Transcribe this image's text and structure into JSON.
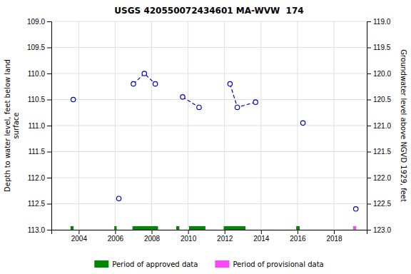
{
  "chart_data": {
    "type": "scatter",
    "title": "USGS 420550072434601 MA-WVW  174",
    "ylabel": "Depth to water level, feet below land\nsurface",
    "y2label": "Groundwater level above NGVD 1929, feet",
    "x": [
      2003.7,
      2006.2,
      2007.0,
      2007.6,
      2008.2,
      2009.7,
      2010.6,
      2012.3,
      2012.7,
      2013.7,
      2016.3,
      2019.2
    ],
    "series": [
      {
        "values": [
          110.5,
          112.4,
          110.2,
          110.0,
          110.2,
          110.45,
          110.65,
          110.2,
          110.65,
          110.55,
          110.95,
          112.6
        ],
        "color": "#0000cc",
        "marker": "open-circle",
        "line_style": "dashed",
        "line_groups": [
          [
            2,
            3,
            4
          ],
          [
            5,
            6
          ],
          [
            7,
            8,
            9
          ]
        ]
      }
    ],
    "periods": [
      {
        "name": "Period of approved data",
        "color": "#008800",
        "ranges": [
          [
            2003.55,
            2003.72
          ],
          [
            2005.95,
            2006.08
          ],
          [
            2006.95,
            2008.35
          ],
          [
            2009.35,
            2009.52
          ],
          [
            2010.05,
            2010.95
          ],
          [
            2011.95,
            2013.15
          ],
          [
            2015.93,
            2016.12
          ]
        ]
      },
      {
        "name": "Period of provisional data",
        "color": "#ff44ff",
        "ranges": [
          [
            2019.05,
            2019.22
          ]
        ]
      }
    ],
    "xlim": [
      2002.5,
      2019.8
    ],
    "xticks": [
      2004,
      2006,
      2008,
      2010,
      2012,
      2014,
      2016,
      2018
    ],
    "ylim": [
      113.0,
      109.0
    ],
    "yticks": [
      {
        "value": 109.0,
        "label": "109.0"
      },
      {
        "value": 109.5,
        "label": "109.5"
      },
      {
        "value": 110.0,
        "label": "110.0"
      },
      {
        "value": 110.5,
        "label": "110.5"
      },
      {
        "value": 111.0,
        "label": "111.0"
      },
      {
        "value": 111.5,
        "label": "111.5"
      },
      {
        "value": 112.0,
        "label": "112.0"
      },
      {
        "value": 112.5,
        "label": "112.5"
      },
      {
        "value": 113.0,
        "label": "113.0"
      }
    ],
    "y2lim": [
      123.0,
      119.0
    ],
    "y2ticks": [
      {
        "value": 119.0,
        "label": "119.0"
      },
      {
        "value": 119.5,
        "label": "119.5"
      },
      {
        "value": 120.0,
        "label": "120.0"
      },
      {
        "value": 120.5,
        "label": "120.5"
      },
      {
        "value": 121.0,
        "label": "121.0"
      },
      {
        "value": 121.5,
        "label": "121.5"
      },
      {
        "value": 122.0,
        "label": "122.0"
      },
      {
        "value": 122.5,
        "label": "122.5"
      },
      {
        "value": 123.0,
        "label": "123.0"
      }
    ],
    "grid": true,
    "legend": "bottom"
  }
}
